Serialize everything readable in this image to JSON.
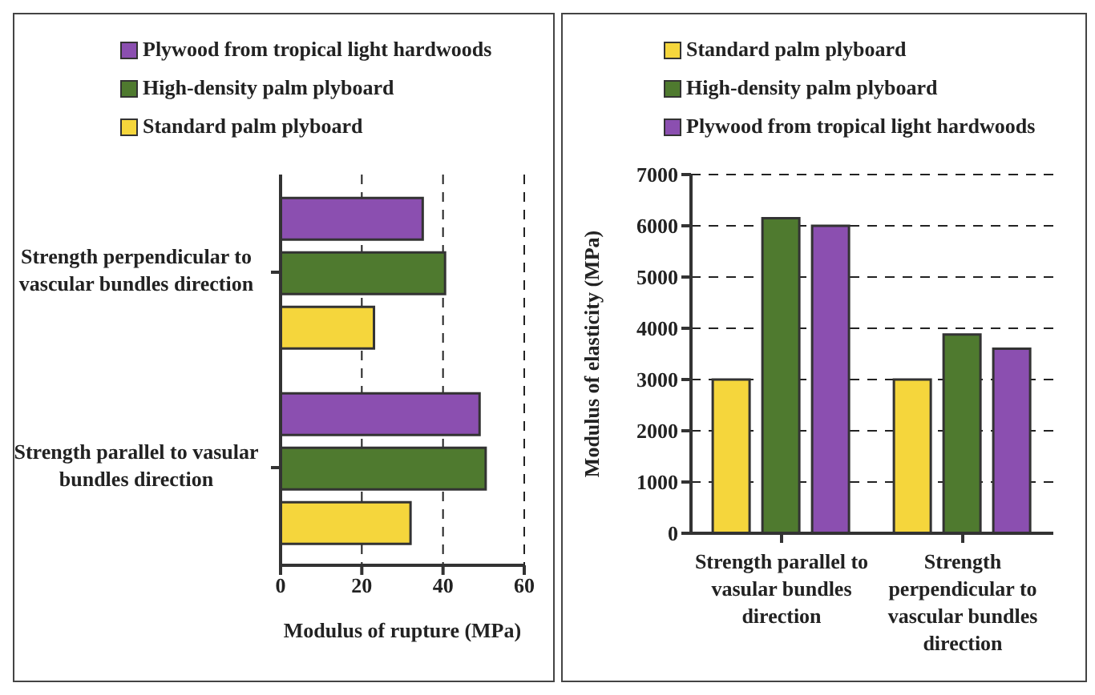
{
  "chart_data": [
    {
      "type": "bar",
      "orientation": "horizontal",
      "categories": [
        "Strength perpendicular to vascular bundles direction",
        "Strength parallel to vasular bundles direction"
      ],
      "series": [
        {
          "name": "Plywood from tropical light hardwoods",
          "color": "#8b4fb0",
          "values": [
            35,
            49
          ]
        },
        {
          "name": "High-density palm plyboard",
          "color": "#4f7a2f",
          "values": [
            40.5,
            50.5
          ]
        },
        {
          "name": "Standard palm plyboard",
          "color": "#f5d63c",
          "values": [
            23,
            32
          ]
        }
      ],
      "xlim": [
        0,
        60
      ],
      "xticks": [
        0,
        20,
        40,
        60
      ],
      "xlabel": "Modulus of rupture (MPa)",
      "grid": "x",
      "legend": "top"
    },
    {
      "type": "bar",
      "categories": [
        "Strength parallel to vasular bundles direction",
        "Strength perpendicular to vascular bundles direction"
      ],
      "series": [
        {
          "name": "Standard palm plyboard",
          "color": "#f5d63c",
          "values": [
            3000,
            3000
          ]
        },
        {
          "name": "High-density palm plyboard",
          "color": "#4f7a2f",
          "values": [
            6150,
            3880
          ]
        },
        {
          "name": "Plywood from tropical light hardwoods",
          "color": "#8b4fb0",
          "values": [
            6000,
            3600
          ]
        }
      ],
      "ylim": [
        0,
        7000
      ],
      "yticks": [
        0,
        1000,
        2000,
        3000,
        4000,
        5000,
        6000,
        7000
      ],
      "ylabel": "Modulus of elasticity (MPa)",
      "grid": "y",
      "legend": "top"
    }
  ]
}
